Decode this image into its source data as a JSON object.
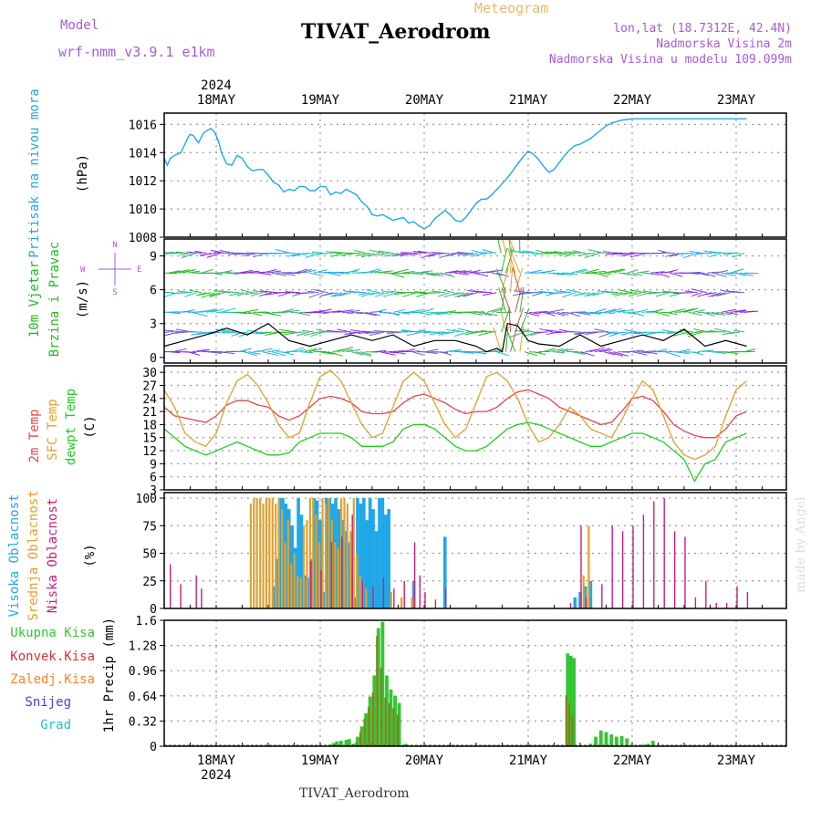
{
  "header": {
    "model_label": "Model",
    "model_name": "wrf-nmm_v3.9.1  e1km",
    "meteogram_label": "Meteogram",
    "station_title": "TIVAT_Aerodrom",
    "lonlat": "lon,lat (18.7312E, 42.4N)",
    "elevation": "Nadmorska Visina 2m",
    "model_elevation": "Nadmorska Visina u modelu 109.099m",
    "footer_station": "TIVAT_Aerodrom",
    "credit": "made by Angel"
  },
  "colors": {
    "pressure": "#1fa8e8",
    "wind_label": "#22bb22",
    "temp2m": "#e8454a",
    "sfc_temp": "#e0a030",
    "dewpt": "#22cc22",
    "high_cloud": "#1fa8e8",
    "mid_cloud": "#e0a030",
    "low_cloud": "#c8207c",
    "total_precip": "#33c633",
    "conv_precip": "#e03030",
    "frozen": "#ff7f2a",
    "snow": "#4040e0",
    "hail": "#22c0c0",
    "header_purple": "#a45cd6",
    "meteogram_orange": "#e8b868"
  },
  "time_axis": {
    "year": "2024",
    "days": [
      "18MAY",
      "19MAY",
      "20MAY",
      "21MAY",
      "22MAY",
      "23MAY"
    ]
  },
  "chart_data": [
    {
      "type": "line",
      "name": "pressure",
      "ylabel": [
        "Pritisak na nivou mora",
        "(hPa)"
      ],
      "yticks": [
        "1008",
        "1010",
        "1012",
        "1014",
        "1016"
      ],
      "ylim": [
        1008,
        1016.8
      ],
      "series": [
        {
          "name": "Pritisak na nivou mora",
          "x": [
            0,
            0.03,
            0.06,
            0.1,
            0.16,
            0.2,
            0.23,
            0.25,
            0.28,
            0.3,
            0.33,
            0.35,
            0.38,
            0.42,
            0.45,
            0.48,
            0.5,
            0.53,
            0.55,
            0.6,
            0.65,
            0.7,
            0.75,
            0.8,
            0.85,
            0.9,
            0.95,
            1.0,
            1.05,
            1.1,
            1.15,
            1.2,
            1.25,
            1.3,
            1.35,
            1.4,
            1.45,
            1.5,
            1.55,
            1.6,
            1.65,
            1.7,
            1.75,
            1.8,
            1.85,
            1.9,
            1.95,
            2.0,
            2.05,
            2.1,
            2.15,
            2.2,
            2.25,
            2.3,
            2.35,
            2.4,
            2.45,
            2.5,
            2.55,
            2.6,
            2.65,
            2.7,
            2.75,
            2.8,
            2.85,
            2.9,
            2.95,
            3.0,
            3.05,
            3.1,
            3.15,
            3.2,
            3.25,
            3.3,
            3.35,
            3.4,
            3.45,
            3.5,
            3.55,
            3.6,
            3.65,
            3.7,
            3.75,
            3.8,
            3.85,
            3.9,
            3.95,
            4.0,
            4.05,
            4.1,
            4.15,
            4.2,
            4.25,
            4.3,
            4.35,
            4.4,
            4.45,
            4.5,
            4.55,
            4.6,
            4.65,
            4.7,
            4.75,
            4.8,
            4.85,
            4.9,
            4.95,
            5.0,
            5.05,
            5.1,
            5.15,
            5.2,
            5.25,
            5.3,
            5.35,
            5.4,
            5.45,
            5.5,
            5.55,
            5.6
          ],
          "values": [
            1013.6,
            1013.1,
            1013.6,
            1013.8,
            1014.0,
            1014.6,
            1015.1,
            1015.3,
            1015.2,
            1015.0,
            1014.7,
            1015.0,
            1015.4,
            1015.6,
            1015.7,
            1015.5,
            1015.2,
            1014.6,
            1014.0,
            1013.2,
            1013.1,
            1013.8,
            1013.6,
            1013.0,
            1012.7,
            1012.8,
            1012.8,
            1012.4,
            1011.9,
            1011.7,
            1011.2,
            1011.4,
            1011.3,
            1011.6,
            1011.6,
            1011.3,
            1011.3,
            1011.6,
            1011.6,
            1011.0,
            1011.2,
            1011.1,
            1011.4,
            1011.2,
            1011.0,
            1010.5,
            1010.2,
            1009.6,
            1009.5,
            1009.6,
            1009.4,
            1009.2,
            1009.3,
            1009.4,
            1009.0,
            1009.1,
            1008.8,
            1008.6,
            1008.8,
            1009.3,
            1009.6,
            1009.9,
            1009.6,
            1009.2,
            1009.1,
            1009.4,
            1009.9,
            1010.4,
            1010.7,
            1010.7,
            1011.0,
            1011.4,
            1011.8,
            1012.2,
            1012.7,
            1013.2,
            1013.7,
            1014.1,
            1013.9,
            1013.5,
            1013.0,
            1012.6,
            1012.8,
            1013.3,
            1013.8,
            1014.2,
            1014.5,
            1014.6,
            1014.8,
            1015.0,
            1015.3,
            1015.6,
            1015.9,
            1016.1,
            1016.2,
            1016.3,
            1016.35,
            1016.4,
            1016.4,
            1016.4,
            1016.4,
            1016.4,
            1016.4,
            1016.4,
            1016.4,
            1016.4,
            1016.4,
            1016.4,
            1016.4,
            1016.4,
            1016.4,
            1016.4,
            1016.4,
            1016.4,
            1016.4,
            1016.4,
            1016.4,
            1016.4,
            1016.4,
            1016.4
          ]
        }
      ]
    },
    {
      "type": "scatter",
      "name": "wind",
      "ylabel": [
        "10m Vjetar",
        "Brzina i Pravac",
        "(m/s)"
      ],
      "yticks": [
        "0",
        "3",
        "6",
        "9"
      ],
      "ylim": [
        -0.5,
        10.5
      ],
      "compass": {
        "north": "N",
        "south": "S",
        "east": "E",
        "west": "W"
      },
      "series": [
        {
          "name": "speed",
          "x": [
            0,
            0.2,
            0.4,
            0.6,
            0.8,
            1.0,
            1.2,
            1.4,
            1.6,
            1.8,
            2.0,
            2.2,
            2.4,
            2.6,
            2.8,
            3.0,
            3.1,
            3.2,
            3.25,
            3.3,
            3.4,
            3.5,
            3.6,
            3.8,
            4.0,
            4.2,
            4.4,
            4.6,
            4.8,
            5.0,
            5.2,
            5.4,
            5.6
          ],
          "values": [
            1.0,
            1.5,
            2.0,
            2.6,
            2.0,
            3.0,
            1.5,
            1.0,
            1.5,
            2.0,
            1.5,
            2.0,
            1.0,
            1.5,
            1.5,
            1.0,
            0.5,
            0.8,
            0.5,
            3.0,
            2.8,
            1.5,
            1.2,
            1.0,
            2.0,
            1.0,
            1.5,
            2.0,
            1.5,
            2.5,
            1.0,
            1.5,
            1.0
          ]
        }
      ]
    },
    {
      "type": "line",
      "name": "temperature",
      "ylabel": [
        "2m Temp",
        "SFC Temp",
        "dewpt Temp",
        "(C)"
      ],
      "yticks": [
        "3",
        "6",
        "9",
        "12",
        "15",
        "18",
        "21",
        "24",
        "27",
        "30"
      ],
      "ylim": [
        3,
        31.5
      ],
      "x": [
        0,
        0.1,
        0.2,
        0.3,
        0.4,
        0.5,
        0.6,
        0.7,
        0.8,
        0.9,
        1.0,
        1.1,
        1.2,
        1.3,
        1.4,
        1.5,
        1.6,
        1.7,
        1.8,
        1.9,
        2.0,
        2.1,
        2.2,
        2.3,
        2.4,
        2.5,
        2.6,
        2.7,
        2.8,
        2.9,
        3.0,
        3.1,
        3.2,
        3.3,
        3.4,
        3.5,
        3.6,
        3.7,
        3.8,
        3.9,
        4.0,
        4.1,
        4.2,
        4.3,
        4.4,
        4.5,
        4.6,
        4.7,
        4.8,
        4.9,
        5.0,
        5.1,
        5.2,
        5.3,
        5.4,
        5.5,
        5.6
      ],
      "series": [
        {
          "name": "2m Temp",
          "values": [
            22,
            20,
            19.5,
            19,
            18.5,
            20,
            22.5,
            23.5,
            23.5,
            22.5,
            22,
            20,
            19,
            20,
            22,
            24,
            24.5,
            24,
            23,
            21,
            20.5,
            20.5,
            21,
            23,
            24.5,
            25,
            24,
            23,
            21.5,
            20.5,
            21,
            21,
            22,
            24,
            25.5,
            26,
            25,
            24,
            22,
            21,
            20,
            19,
            18,
            18.5,
            21,
            24,
            24.5,
            23.5,
            21,
            18,
            16.5,
            15.5,
            15,
            15,
            17,
            20,
            21
          ]
        },
        {
          "name": "SFC Temp",
          "values": [
            26,
            22,
            16,
            14,
            13,
            16,
            23,
            28,
            29.5,
            27,
            23,
            18,
            15,
            16,
            23,
            29,
            30.5,
            28,
            23,
            18,
            15,
            16,
            22,
            28,
            30,
            28,
            23,
            18,
            15,
            17,
            23,
            29,
            30,
            28,
            24,
            18,
            14,
            15,
            18,
            22,
            20,
            17,
            16,
            15,
            19,
            24,
            28,
            26,
            20,
            14,
            11,
            10,
            11,
            13,
            20,
            26,
            28
          ]
        },
        {
          "name": "dewpt Temp",
          "values": [
            17,
            15,
            13,
            12,
            11,
            12,
            13,
            14,
            13,
            12,
            11,
            11,
            11.5,
            14,
            15,
            16,
            16,
            16,
            15,
            13,
            13,
            13,
            14,
            17,
            18,
            18,
            17,
            15,
            13,
            12,
            12,
            13,
            15,
            17,
            18,
            18.5,
            18,
            17,
            16,
            15,
            14,
            13,
            13,
            14,
            15,
            16,
            16,
            15,
            14,
            12,
            10,
            5,
            9,
            10,
            14,
            15,
            16
          ]
        }
      ]
    },
    {
      "type": "bar",
      "name": "cloud",
      "ylabel": [
        "Visoka Oblacnost",
        "Srednja Oblacnost",
        "Niska Oblacnost",
        "(%)"
      ],
      "yticks": [
        "0",
        "25",
        "50",
        "75",
        "100"
      ],
      "ylim": [
        0,
        105
      ],
      "series": [
        {
          "name": "Visoka Oblacnost",
          "x": [
            1.05,
            1.08,
            1.11,
            1.14,
            1.17,
            1.2,
            1.23,
            1.26,
            1.29,
            1.32,
            1.35,
            1.38,
            1.41,
            1.44,
            1.47,
            1.5,
            1.53,
            1.56,
            1.59,
            1.62,
            1.65,
            1.68,
            1.71,
            1.74,
            1.77,
            1.8,
            1.83,
            1.86,
            1.89,
            1.92,
            1.95,
            1.98,
            2.01,
            2.04,
            2.07,
            2.1,
            2.13,
            2.16,
            2.4,
            2.7,
            3.95,
            4.0,
            4.05,
            4.1
          ],
          "values": [
            20,
            45,
            100,
            100,
            95,
            90,
            75,
            55,
            100,
            85,
            30,
            28,
            45,
            100,
            98,
            80,
            15,
            100,
            100,
            95,
            100,
            90,
            80,
            70,
            60,
            35,
            10,
            100,
            95,
            100,
            80,
            100,
            90,
            70,
            100,
            100,
            85,
            90,
            25,
            65,
            10,
            15,
            20,
            25
          ]
        },
        {
          "name": "Srednja Oblacnost",
          "x": [
            0.85,
            0.88,
            0.91,
            0.94,
            0.97,
            1.0,
            1.03,
            1.06,
            1.09,
            1.12,
            1.15,
            1.18,
            1.21,
            1.24,
            1.27,
            1.3,
            1.33,
            1.36,
            1.39,
            1.42,
            1.45,
            1.48,
            1.51,
            1.54,
            1.57,
            1.6,
            1.63,
            1.66,
            1.69,
            1.72,
            1.75,
            1.78,
            1.81,
            1.84,
            1.87,
            1.9,
            1.93,
            1.96,
            2.2,
            2.3,
            2.4,
            4.05,
            4.1
          ],
          "values": [
            95,
            100,
            100,
            100,
            95,
            100,
            100,
            100,
            95,
            100,
            90,
            60,
            80,
            40,
            50,
            30,
            28,
            75,
            80,
            100,
            100,
            85,
            60,
            100,
            95,
            100,
            80,
            60,
            55,
            100,
            100,
            95,
            70,
            100,
            50,
            30,
            25,
            18,
            15,
            10,
            10,
            30,
            75
          ]
        },
        {
          "name": "Niska Oblacnost",
          "x": [
            0.05,
            0.15,
            0.3,
            0.35,
            1.4,
            1.5,
            1.6,
            1.7,
            1.8,
            1.9,
            2.0,
            2.1,
            2.2,
            2.3,
            2.4,
            2.45,
            2.5,
            2.6,
            2.7,
            3.9,
            4.0,
            4.05,
            4.2,
            4.3,
            4.4,
            4.5,
            4.6,
            4.7,
            4.8,
            4.9,
            5.0,
            5.1,
            5.2,
            5.3,
            5.4,
            5.5,
            5.6
          ],
          "values": [
            40,
            22,
            30,
            18,
            43,
            35,
            60,
            65,
            85,
            25,
            20,
            28,
            18,
            25,
            60,
            30,
            15,
            8,
            18,
            5,
            75,
            10,
            22,
            75,
            70,
            75,
            85,
            97,
            100,
            70,
            65,
            10,
            25,
            5,
            5,
            20,
            15
          ]
        }
      ]
    },
    {
      "type": "bar",
      "name": "precip",
      "ylabel": [
        "1hr Precip (mm)"
      ],
      "legend": [
        "Ukupna Kisa",
        "Konvek.Kisa",
        "Zaledj.Kisa",
        "Snijeg",
        "Grad"
      ],
      "yticks": [
        "0",
        "0.32",
        "0.64",
        "0.96",
        "1.28",
        "1.6"
      ],
      "ylim": [
        0,
        1.6
      ],
      "series": [
        {
          "name": "Ukupna Kisa",
          "x": [
            1.6,
            1.63,
            1.66,
            1.7,
            1.75,
            1.78,
            1.82,
            1.86,
            1.9,
            1.94,
            1.98,
            2.02,
            2.06,
            2.1,
            2.14,
            2.18,
            2.22,
            2.26,
            2.32,
            3.88,
            3.91,
            3.94,
            4.1,
            4.15,
            4.2,
            4.25,
            4.3,
            4.35,
            4.4,
            4.45,
            4.6,
            4.65,
            4.7
          ],
          "values": [
            0.02,
            0.04,
            0.06,
            0.07,
            0.08,
            0.09,
            0.03,
            0.12,
            0.25,
            0.42,
            0.63,
            0.9,
            1.5,
            1.58,
            0.9,
            0.72,
            0.64,
            0.55,
            0.03,
            1.18,
            1.15,
            1.12,
            0.03,
            0.12,
            0.2,
            0.18,
            0.15,
            0.12,
            0.13,
            0.1,
            0.02,
            0.03,
            0.07
          ]
        },
        {
          "name": "Konvek.Kisa",
          "x": [
            1.86,
            1.9,
            1.94,
            1.98,
            2.02,
            2.06,
            2.1,
            2.14,
            2.18,
            2.22,
            2.26,
            3.88,
            3.91,
            3.94
          ],
          "values": [
            0.05,
            0.18,
            0.35,
            0.5,
            0.68,
            1.4,
            1.0,
            0.62,
            0.55,
            0.48,
            0.4,
            0.65,
            0.55,
            0.4
          ]
        }
      ]
    }
  ]
}
